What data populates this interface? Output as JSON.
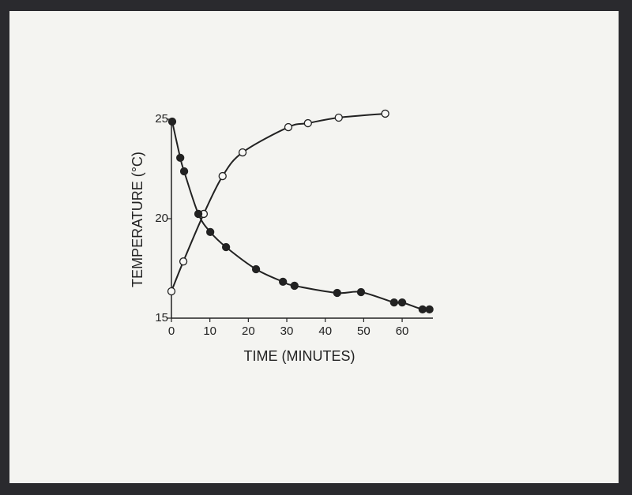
{
  "chart_data": {
    "type": "scatter",
    "xlabel": "TIME (MINUTES)",
    "ylabel": "TEMPERATURE (°C)",
    "xlim": [
      0,
      68
    ],
    "ylim": [
      15,
      25
    ],
    "xticks": [
      0,
      10,
      20,
      30,
      40,
      50,
      60
    ],
    "yticks": [
      15,
      20,
      25
    ],
    "series": [
      {
        "color": "#222222",
        "marker": "open",
        "x": [
          0,
          3.1,
          8.4,
          13.3,
          18.5,
          30.4,
          35.5,
          43.5,
          55.6
        ],
        "values": [
          16.35,
          17.85,
          20.24,
          22.14,
          23.33,
          24.6,
          24.8,
          25.08,
          25.28
        ]
      },
      {
        "color": "#222222",
        "marker": "filled",
        "x": [
          0.2,
          2.3,
          3.3,
          7.0,
          10.1,
          14.2,
          22.0,
          29.0,
          32.0,
          43.1,
          49.3,
          57.9,
          60.0,
          65.3,
          67.1
        ],
        "values": [
          24.88,
          23.06,
          22.38,
          20.24,
          19.33,
          18.57,
          17.46,
          16.83,
          16.63,
          16.27,
          16.31,
          15.79,
          15.79,
          15.44,
          15.44
        ]
      }
    ]
  }
}
